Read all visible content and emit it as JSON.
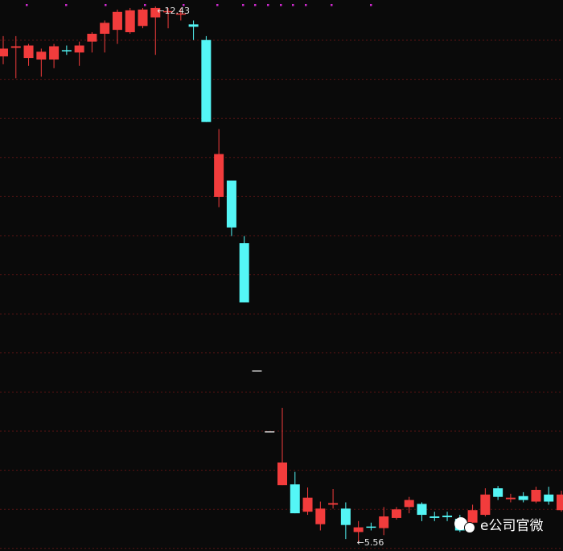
{
  "chart_data": {
    "type": "candlestick",
    "open": [
      11.79,
      11.9,
      11.77,
      11.75,
      11.75,
      11.87,
      11.84,
      11.98,
      12.08,
      12.13,
      12.1,
      12.18,
      12.29,
      12.36,
      12.33,
      12.2,
      12.0,
      9.99,
      10.2,
      9.4,
      7.77,
      6.99,
      6.3,
      6.31,
      5.96,
      5.8,
      6.05,
      6.0,
      5.7,
      5.77,
      5.75,
      5.88,
      6.02,
      6.06,
      5.9,
      5.91,
      5.87,
      5.82,
      5.92,
      6.26,
      6.12,
      6.16,
      6.09,
      6.18,
      5.98
    ],
    "high": [
      12.05,
      12.05,
      11.95,
      11.89,
      11.95,
      11.93,
      11.98,
      12.1,
      12.25,
      12.39,
      12.41,
      12.41,
      12.43,
      12.41,
      12.41,
      12.25,
      12.05,
      10.86,
      10.2,
      9.49,
      7.77,
      6.99,
      7.29,
      6.47,
      6.27,
      6.09,
      6.25,
      6.08,
      5.84,
      5.82,
      6.02,
      6.02,
      6.15,
      6.08,
      5.96,
      5.96,
      5.92,
      6.05,
      6.26,
      6.29,
      6.19,
      6.21,
      6.28,
      6.28,
      6.23
    ],
    "low": [
      11.69,
      11.51,
      11.67,
      11.53,
      11.64,
      11.81,
      11.67,
      11.84,
      11.84,
      11.95,
      12.08,
      12.15,
      11.81,
      12.15,
      12.25,
      12.0,
      10.95,
      9.86,
      9.49,
      8.64,
      7.77,
      6.99,
      6.3,
      5.94,
      5.92,
      5.72,
      6.0,
      5.61,
      5.56,
      5.72,
      5.66,
      5.86,
      5.94,
      5.84,
      5.84,
      5.84,
      5.7,
      5.77,
      5.9,
      6.11,
      6.08,
      6.08,
      6.07,
      6.05,
      5.96
    ],
    "close": [
      11.89,
      11.92,
      11.93,
      11.85,
      11.92,
      11.86,
      11.93,
      12.08,
      12.22,
      12.36,
      12.38,
      12.39,
      12.41,
      12.37,
      12.34,
      12.17,
      10.95,
      10.54,
      9.6,
      8.64,
      7.77,
      6.99,
      6.59,
      5.94,
      6.14,
      6.0,
      6.07,
      5.79,
      5.76,
      5.76,
      5.9,
      5.99,
      6.11,
      5.92,
      5.88,
      5.89,
      5.72,
      5.98,
      6.18,
      6.15,
      6.14,
      6.11,
      6.24,
      6.09,
      6.18
    ],
    "up_color": "#f23c3c",
    "down_color": "#54f6f6",
    "flat_color": "#cfcfcf",
    "high_label": {
      "value": 12.43,
      "label": "←12.43"
    },
    "low_label": {
      "value": 5.56,
      "label": "←5.56"
    },
    "watermark": "e公司官微"
  }
}
